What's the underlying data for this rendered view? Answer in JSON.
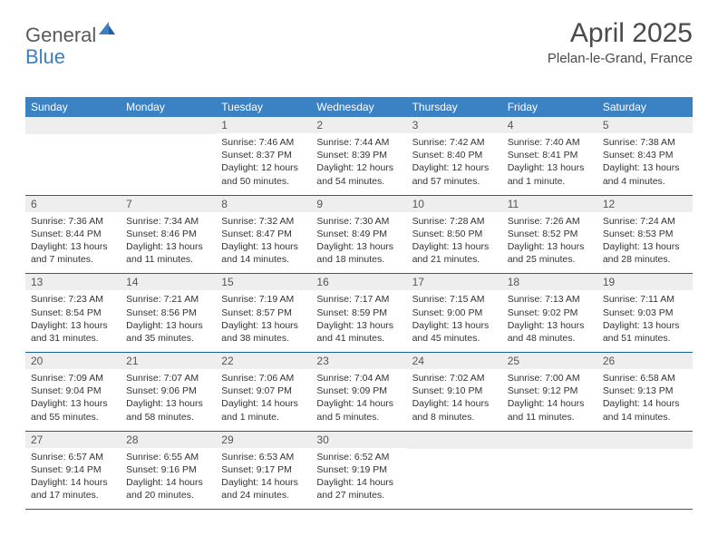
{
  "logo": {
    "general": "General",
    "blue": "Blue"
  },
  "title": {
    "month": "April 2025",
    "location": "Plelan-le-Grand, France"
  },
  "colors": {
    "header_bg": "#3b82c4",
    "header_text": "#ffffff",
    "daynum_bg": "#eeeeee",
    "border": "#1f5f9f",
    "logo_general": "#5a5a5a",
    "logo_blue": "#3b7fc4",
    "body_text": "#333333",
    "title_text": "#4a4a4a"
  },
  "dayHeaders": [
    "Sunday",
    "Monday",
    "Tuesday",
    "Wednesday",
    "Thursday",
    "Friday",
    "Saturday"
  ],
  "weeks": [
    [
      null,
      null,
      {
        "num": "1",
        "sunrise": "Sunrise: 7:46 AM",
        "sunset": "Sunset: 8:37 PM",
        "daylight1": "Daylight: 12 hours",
        "daylight2": "and 50 minutes."
      },
      {
        "num": "2",
        "sunrise": "Sunrise: 7:44 AM",
        "sunset": "Sunset: 8:39 PM",
        "daylight1": "Daylight: 12 hours",
        "daylight2": "and 54 minutes."
      },
      {
        "num": "3",
        "sunrise": "Sunrise: 7:42 AM",
        "sunset": "Sunset: 8:40 PM",
        "daylight1": "Daylight: 12 hours",
        "daylight2": "and 57 minutes."
      },
      {
        "num": "4",
        "sunrise": "Sunrise: 7:40 AM",
        "sunset": "Sunset: 8:41 PM",
        "daylight1": "Daylight: 13 hours",
        "daylight2": "and 1 minute."
      },
      {
        "num": "5",
        "sunrise": "Sunrise: 7:38 AM",
        "sunset": "Sunset: 8:43 PM",
        "daylight1": "Daylight: 13 hours",
        "daylight2": "and 4 minutes."
      }
    ],
    [
      {
        "num": "6",
        "sunrise": "Sunrise: 7:36 AM",
        "sunset": "Sunset: 8:44 PM",
        "daylight1": "Daylight: 13 hours",
        "daylight2": "and 7 minutes."
      },
      {
        "num": "7",
        "sunrise": "Sunrise: 7:34 AM",
        "sunset": "Sunset: 8:46 PM",
        "daylight1": "Daylight: 13 hours",
        "daylight2": "and 11 minutes."
      },
      {
        "num": "8",
        "sunrise": "Sunrise: 7:32 AM",
        "sunset": "Sunset: 8:47 PM",
        "daylight1": "Daylight: 13 hours",
        "daylight2": "and 14 minutes."
      },
      {
        "num": "9",
        "sunrise": "Sunrise: 7:30 AM",
        "sunset": "Sunset: 8:49 PM",
        "daylight1": "Daylight: 13 hours",
        "daylight2": "and 18 minutes."
      },
      {
        "num": "10",
        "sunrise": "Sunrise: 7:28 AM",
        "sunset": "Sunset: 8:50 PM",
        "daylight1": "Daylight: 13 hours",
        "daylight2": "and 21 minutes."
      },
      {
        "num": "11",
        "sunrise": "Sunrise: 7:26 AM",
        "sunset": "Sunset: 8:52 PM",
        "daylight1": "Daylight: 13 hours",
        "daylight2": "and 25 minutes."
      },
      {
        "num": "12",
        "sunrise": "Sunrise: 7:24 AM",
        "sunset": "Sunset: 8:53 PM",
        "daylight1": "Daylight: 13 hours",
        "daylight2": "and 28 minutes."
      }
    ],
    [
      {
        "num": "13",
        "sunrise": "Sunrise: 7:23 AM",
        "sunset": "Sunset: 8:54 PM",
        "daylight1": "Daylight: 13 hours",
        "daylight2": "and 31 minutes."
      },
      {
        "num": "14",
        "sunrise": "Sunrise: 7:21 AM",
        "sunset": "Sunset: 8:56 PM",
        "daylight1": "Daylight: 13 hours",
        "daylight2": "and 35 minutes."
      },
      {
        "num": "15",
        "sunrise": "Sunrise: 7:19 AM",
        "sunset": "Sunset: 8:57 PM",
        "daylight1": "Daylight: 13 hours",
        "daylight2": "and 38 minutes."
      },
      {
        "num": "16",
        "sunrise": "Sunrise: 7:17 AM",
        "sunset": "Sunset: 8:59 PM",
        "daylight1": "Daylight: 13 hours",
        "daylight2": "and 41 minutes."
      },
      {
        "num": "17",
        "sunrise": "Sunrise: 7:15 AM",
        "sunset": "Sunset: 9:00 PM",
        "daylight1": "Daylight: 13 hours",
        "daylight2": "and 45 minutes."
      },
      {
        "num": "18",
        "sunrise": "Sunrise: 7:13 AM",
        "sunset": "Sunset: 9:02 PM",
        "daylight1": "Daylight: 13 hours",
        "daylight2": "and 48 minutes."
      },
      {
        "num": "19",
        "sunrise": "Sunrise: 7:11 AM",
        "sunset": "Sunset: 9:03 PM",
        "daylight1": "Daylight: 13 hours",
        "daylight2": "and 51 minutes."
      }
    ],
    [
      {
        "num": "20",
        "sunrise": "Sunrise: 7:09 AM",
        "sunset": "Sunset: 9:04 PM",
        "daylight1": "Daylight: 13 hours",
        "daylight2": "and 55 minutes."
      },
      {
        "num": "21",
        "sunrise": "Sunrise: 7:07 AM",
        "sunset": "Sunset: 9:06 PM",
        "daylight1": "Daylight: 13 hours",
        "daylight2": "and 58 minutes."
      },
      {
        "num": "22",
        "sunrise": "Sunrise: 7:06 AM",
        "sunset": "Sunset: 9:07 PM",
        "daylight1": "Daylight: 14 hours",
        "daylight2": "and 1 minute."
      },
      {
        "num": "23",
        "sunrise": "Sunrise: 7:04 AM",
        "sunset": "Sunset: 9:09 PM",
        "daylight1": "Daylight: 14 hours",
        "daylight2": "and 5 minutes."
      },
      {
        "num": "24",
        "sunrise": "Sunrise: 7:02 AM",
        "sunset": "Sunset: 9:10 PM",
        "daylight1": "Daylight: 14 hours",
        "daylight2": "and 8 minutes."
      },
      {
        "num": "25",
        "sunrise": "Sunrise: 7:00 AM",
        "sunset": "Sunset: 9:12 PM",
        "daylight1": "Daylight: 14 hours",
        "daylight2": "and 11 minutes."
      },
      {
        "num": "26",
        "sunrise": "Sunrise: 6:58 AM",
        "sunset": "Sunset: 9:13 PM",
        "daylight1": "Daylight: 14 hours",
        "daylight2": "and 14 minutes."
      }
    ],
    [
      {
        "num": "27",
        "sunrise": "Sunrise: 6:57 AM",
        "sunset": "Sunset: 9:14 PM",
        "daylight1": "Daylight: 14 hours",
        "daylight2": "and 17 minutes."
      },
      {
        "num": "28",
        "sunrise": "Sunrise: 6:55 AM",
        "sunset": "Sunset: 9:16 PM",
        "daylight1": "Daylight: 14 hours",
        "daylight2": "and 20 minutes."
      },
      {
        "num": "29",
        "sunrise": "Sunrise: 6:53 AM",
        "sunset": "Sunset: 9:17 PM",
        "daylight1": "Daylight: 14 hours",
        "daylight2": "and 24 minutes."
      },
      {
        "num": "30",
        "sunrise": "Sunrise: 6:52 AM",
        "sunset": "Sunset: 9:19 PM",
        "daylight1": "Daylight: 14 hours",
        "daylight2": "and 27 minutes."
      },
      null,
      null,
      null
    ]
  ]
}
